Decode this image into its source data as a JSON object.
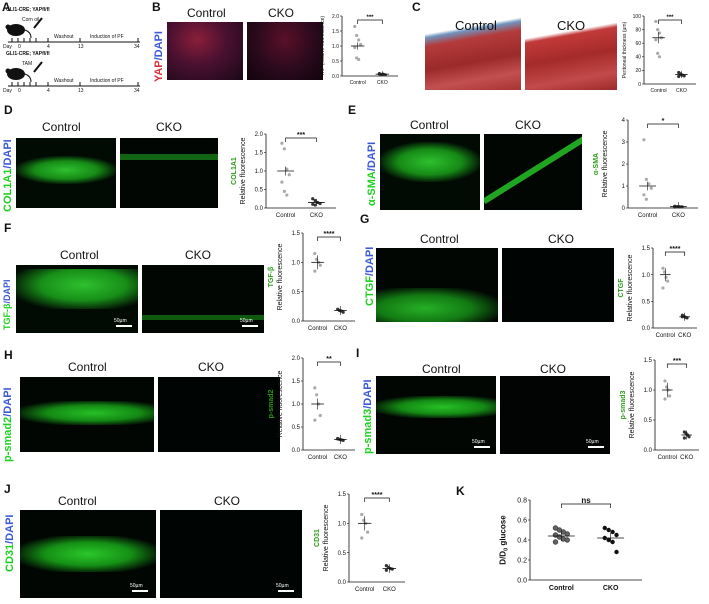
{
  "panels": {
    "A": {
      "letter": "A",
      "row1_title": "GLI1-CRE; YAPfl/fl",
      "row1_drug": "Corn oil",
      "row2_title": "GLI1-CRE; YAPfl/fl",
      "row2_drug": "TAM",
      "day_label": "Day",
      "ticks": [
        "0",
        "4",
        "13",
        "34"
      ],
      "washout": "Washout",
      "induction": "Induction of PF"
    },
    "B": {
      "letter": "B",
      "control": "Control",
      "cko": "CKO",
      "stain": "YAP/DAPI",
      "stain_a": "YAP",
      "stain_b": "/DAPI",
      "sig": "***",
      "ylabel": "YAP (relative fluorescence)"
    },
    "C": {
      "letter": "C",
      "control": "Control",
      "cko": "CKO",
      "sig": "***",
      "ylabel": "Peritoneal thickness (µm)"
    },
    "D": {
      "letter": "D",
      "control": "Control",
      "cko": "CKO",
      "stain_a": "COL1A1",
      "stain_b": "/DAPI",
      "sig": "***",
      "ylabel": "Relative fluorescence",
      "ylabel2": "COL1A1"
    },
    "E": {
      "letter": "E",
      "control": "Control",
      "cko": "CKO",
      "stain_a": "α-SMA",
      "stain_b": "/DAPI",
      "sig": "*",
      "ylabel": "Relative fluorescence",
      "ylabel2": "α-SMA"
    },
    "F": {
      "letter": "F",
      "control": "Control",
      "cko": "CKO",
      "stain_a": "TGF-β",
      "stain_b": "/DAPI",
      "sig": "****",
      "ylabel": "Relative fluorescence",
      "ylabel2": "TGF-β",
      "scale": "50µm"
    },
    "G": {
      "letter": "G",
      "control": "Control",
      "cko": "CKO",
      "stain_a": "CTGF",
      "stain_b": "/DAPI",
      "sig": "****",
      "ylabel": "Relative fluorescence",
      "ylabel2": "CTGF"
    },
    "H": {
      "letter": "H",
      "control": "Control",
      "cko": "CKO",
      "stain_a": "p-smad2",
      "stain_b": "/DAPI",
      "sig": "**",
      "ylabel": "Relative fluorescence",
      "ylabel2": "p-smad2"
    },
    "I": {
      "letter": "I",
      "control": "Control",
      "cko": "CKO",
      "stain_a": "p-smad3",
      "stain_b": "/DAPI",
      "sig": "***",
      "ylabel": "Relative fluorescence",
      "ylabel2": "p-smad3",
      "scale": "50µm"
    },
    "J": {
      "letter": "J",
      "control": "Control",
      "cko": "CKO",
      "stain_a": "CD31",
      "stain_b": "/DAPI",
      "sig": "****",
      "ylabel": "Relative fluorescence",
      "ylabel2": "CD31",
      "scale": "50µm"
    },
    "K": {
      "letter": "K",
      "sig": "ns",
      "ylabel": "D/D0 glucose"
    }
  },
  "colors": {
    "green": "#1fd21f",
    "blue": "#3a5ad8",
    "red": "#d8323c",
    "black": "#111111"
  },
  "chart_data": [
    {
      "panel": "B",
      "type": "scatter",
      "categories": [
        "Control",
        "CKO"
      ],
      "ylabel": "YAP (relative fluorescence)",
      "ylim": [
        0,
        2
      ],
      "yticks": [
        0,
        0.5,
        1.0,
        1.5,
        2.0
      ],
      "series": [
        {
          "values": [
            [
              1.65,
              1.35,
              1.2,
              1.05,
              0.95,
              0.6,
              0.55
            ],
            [
              0.08,
              0.05,
              0.06,
              0.04,
              0.07,
              0.05
            ]
          ],
          "mean": [
            1.0,
            0.06
          ]
        }
      ],
      "significance": "***"
    },
    {
      "panel": "C",
      "type": "scatter",
      "categories": [
        "Control",
        "CKO"
      ],
      "ylabel": "Peritoneal thickness (µm)",
      "ylim": [
        0,
        100
      ],
      "yticks": [
        0,
        20,
        40,
        60,
        80,
        100
      ],
      "series": [
        {
          "values": [
            [
              92,
              80,
              75,
              68,
              65,
              45,
              40
            ],
            [
              17,
              14,
              13,
              12,
              11,
              15
            ]
          ],
          "mean": [
            68,
            14
          ]
        }
      ],
      "significance": "***"
    },
    {
      "panel": "D",
      "type": "scatter",
      "categories": [
        "Control",
        "CKO"
      ],
      "ylabel": "Relative fluorescence",
      "ylim": [
        0,
        2
      ],
      "yticks": [
        0,
        0.5,
        1.0,
        1.5,
        2.0
      ],
      "series": [
        {
          "values": [
            [
              1.75,
              1.6,
              1.05,
              0.9,
              0.7,
              0.45,
              0.35
            ],
            [
              0.25,
              0.2,
              0.15,
              0.12,
              0.1,
              0.08
            ]
          ],
          "mean": [
            1.0,
            0.15
          ]
        }
      ],
      "significance": "***"
    },
    {
      "panel": "E",
      "type": "scatter",
      "categories": [
        "Control",
        "CKO"
      ],
      "ylabel": "Relative fluorescence",
      "ylim": [
        0,
        4
      ],
      "yticks": [
        0,
        1,
        2,
        3,
        4
      ],
      "series": [
        {
          "values": [
            [
              3.1,
              1.3,
              1.1,
              0.9,
              0.6,
              0.4
            ],
            [
              0.08,
              0.06,
              0.05,
              0.05,
              0.04,
              0.06,
              0.05
            ]
          ],
          "mean": [
            1.0,
            0.06
          ]
        }
      ],
      "significance": "*"
    },
    {
      "panel": "F",
      "type": "scatter",
      "categories": [
        "Control",
        "CKO"
      ],
      "ylabel": "Relative fluorescence",
      "ylim": [
        0,
        1.5
      ],
      "yticks": [
        0,
        0.5,
        1.0,
        1.5
      ],
      "series": [
        {
          "values": [
            [
              1.15,
              1.05,
              1.0,
              0.95,
              0.85
            ],
            [
              0.2,
              0.18,
              0.17,
              0.15
            ]
          ],
          "mean": [
            1.0,
            0.18
          ]
        }
      ],
      "significance": "****"
    },
    {
      "panel": "G",
      "type": "scatter",
      "categories": [
        "Control",
        "CKO"
      ],
      "ylabel": "Relative fluorescence",
      "ylim": [
        0,
        1.5
      ],
      "yticks": [
        0,
        0.5,
        1.0,
        1.5
      ],
      "series": [
        {
          "values": [
            [
              1.12,
              1.05,
              0.95,
              0.88,
              0.75
            ],
            [
              0.24,
              0.22,
              0.2,
              0.19,
              0.21
            ]
          ],
          "mean": [
            1.0,
            0.21
          ]
        }
      ],
      "significance": "****"
    },
    {
      "panel": "H",
      "type": "scatter",
      "categories": [
        "Control",
        "CKO"
      ],
      "ylabel": "Relative fluorescence",
      "ylim": [
        0,
        2
      ],
      "yticks": [
        0,
        0.5,
        1.0,
        1.5,
        2.0
      ],
      "series": [
        {
          "values": [
            [
              1.35,
              1.2,
              1.0,
              0.75,
              0.65
            ],
            [
              0.25,
              0.23,
              0.22,
              0.21,
              0.24
            ]
          ],
          "mean": [
            1.0,
            0.23
          ]
        }
      ],
      "significance": "**"
    },
    {
      "panel": "I",
      "type": "scatter",
      "categories": [
        "Control",
        "CKO"
      ],
      "ylabel": "Relative fluorescence",
      "ylim": [
        0,
        1.5
      ],
      "yticks": [
        0,
        0.5,
        1.0,
        1.5
      ],
      "series": [
        {
          "values": [
            [
              1.15,
              1.05,
              1.0,
              0.9,
              0.85
            ],
            [
              0.3,
              0.28,
              0.25,
              0.22,
              0.2
            ]
          ],
          "mean": [
            1.0,
            0.25
          ]
        }
      ],
      "significance": "***"
    },
    {
      "panel": "J",
      "type": "scatter",
      "categories": [
        "Control",
        "CKO"
      ],
      "ylabel": "Relative fluorescence",
      "ylim": [
        0,
        1.5
      ],
      "yticks": [
        0,
        0.5,
        1.0,
        1.5
      ],
      "series": [
        {
          "values": [
            [
              1.15,
              1.05,
              1.0,
              0.85,
              0.75
            ],
            [
              0.28,
              0.25,
              0.23,
              0.22,
              0.2
            ]
          ],
          "mean": [
            1.0,
            0.23
          ]
        }
      ],
      "significance": "****"
    },
    {
      "panel": "K",
      "type": "scatter",
      "categories": [
        "Control",
        "CKO"
      ],
      "ylabel": "D/D0 glucose",
      "ylim": [
        0,
        0.8
      ],
      "yticks": [
        0,
        0.2,
        0.4,
        0.6,
        0.8
      ],
      "series": [
        {
          "values": [
            [
              0.52,
              0.5,
              0.48,
              0.46,
              0.45,
              0.43,
              0.41,
              0.4,
              0.38
            ],
            [
              0.52,
              0.5,
              0.48,
              0.45,
              0.42,
              0.4,
              0.38,
              0.28
            ]
          ],
          "mean": [
            0.44,
            0.42
          ]
        }
      ],
      "significance": "ns"
    }
  ]
}
